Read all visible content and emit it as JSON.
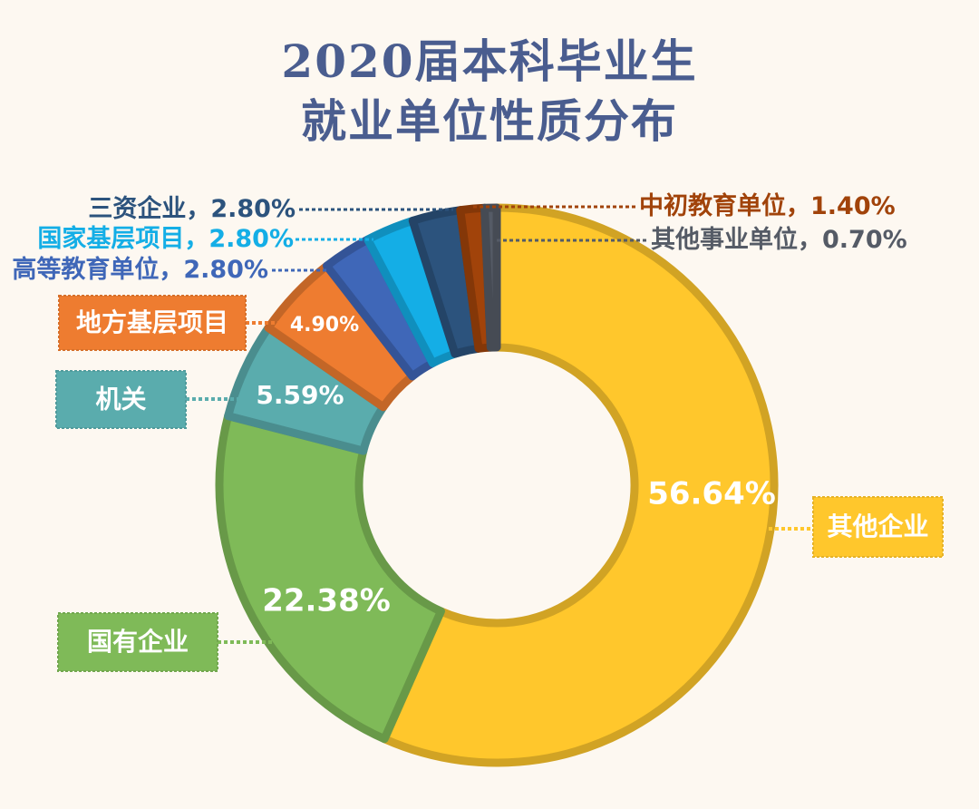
{
  "title_line1": "2020届本科毕业生",
  "title_line2": "就业单位性质分布",
  "chart_data": {
    "type": "pie",
    "style": "donut",
    "slices": [
      {
        "name": "其他企业",
        "value": 56.64,
        "value_label": "56.64%",
        "color": "#ffc72c"
      },
      {
        "name": "国有企业",
        "value": 22.38,
        "value_label": "22.38%",
        "color": "#7fba58"
      },
      {
        "name": "机关",
        "value": 5.59,
        "value_label": "5.59%",
        "color": "#5aacad"
      },
      {
        "name": "地方基层项目",
        "value": 4.9,
        "value_label": "4.90%",
        "color": "#ee7c30"
      },
      {
        "name": "高等教育单位",
        "value": 2.8,
        "value_label": "2.80%",
        "color": "#3f67b8"
      },
      {
        "name": "国家基层项目",
        "value": 2.8,
        "value_label": "2.80%",
        "color": "#14aee6"
      },
      {
        "name": "三资企业",
        "value": 2.8,
        "value_label": "2.80%",
        "color": "#2c537d"
      },
      {
        "name": "中初教育单位",
        "value": 1.4,
        "value_label": "1.40%",
        "color": "#a1430a"
      },
      {
        "name": "其他事业单位",
        "value": 0.7,
        "value_label": "0.70%",
        "color": "#555b66"
      }
    ]
  }
}
